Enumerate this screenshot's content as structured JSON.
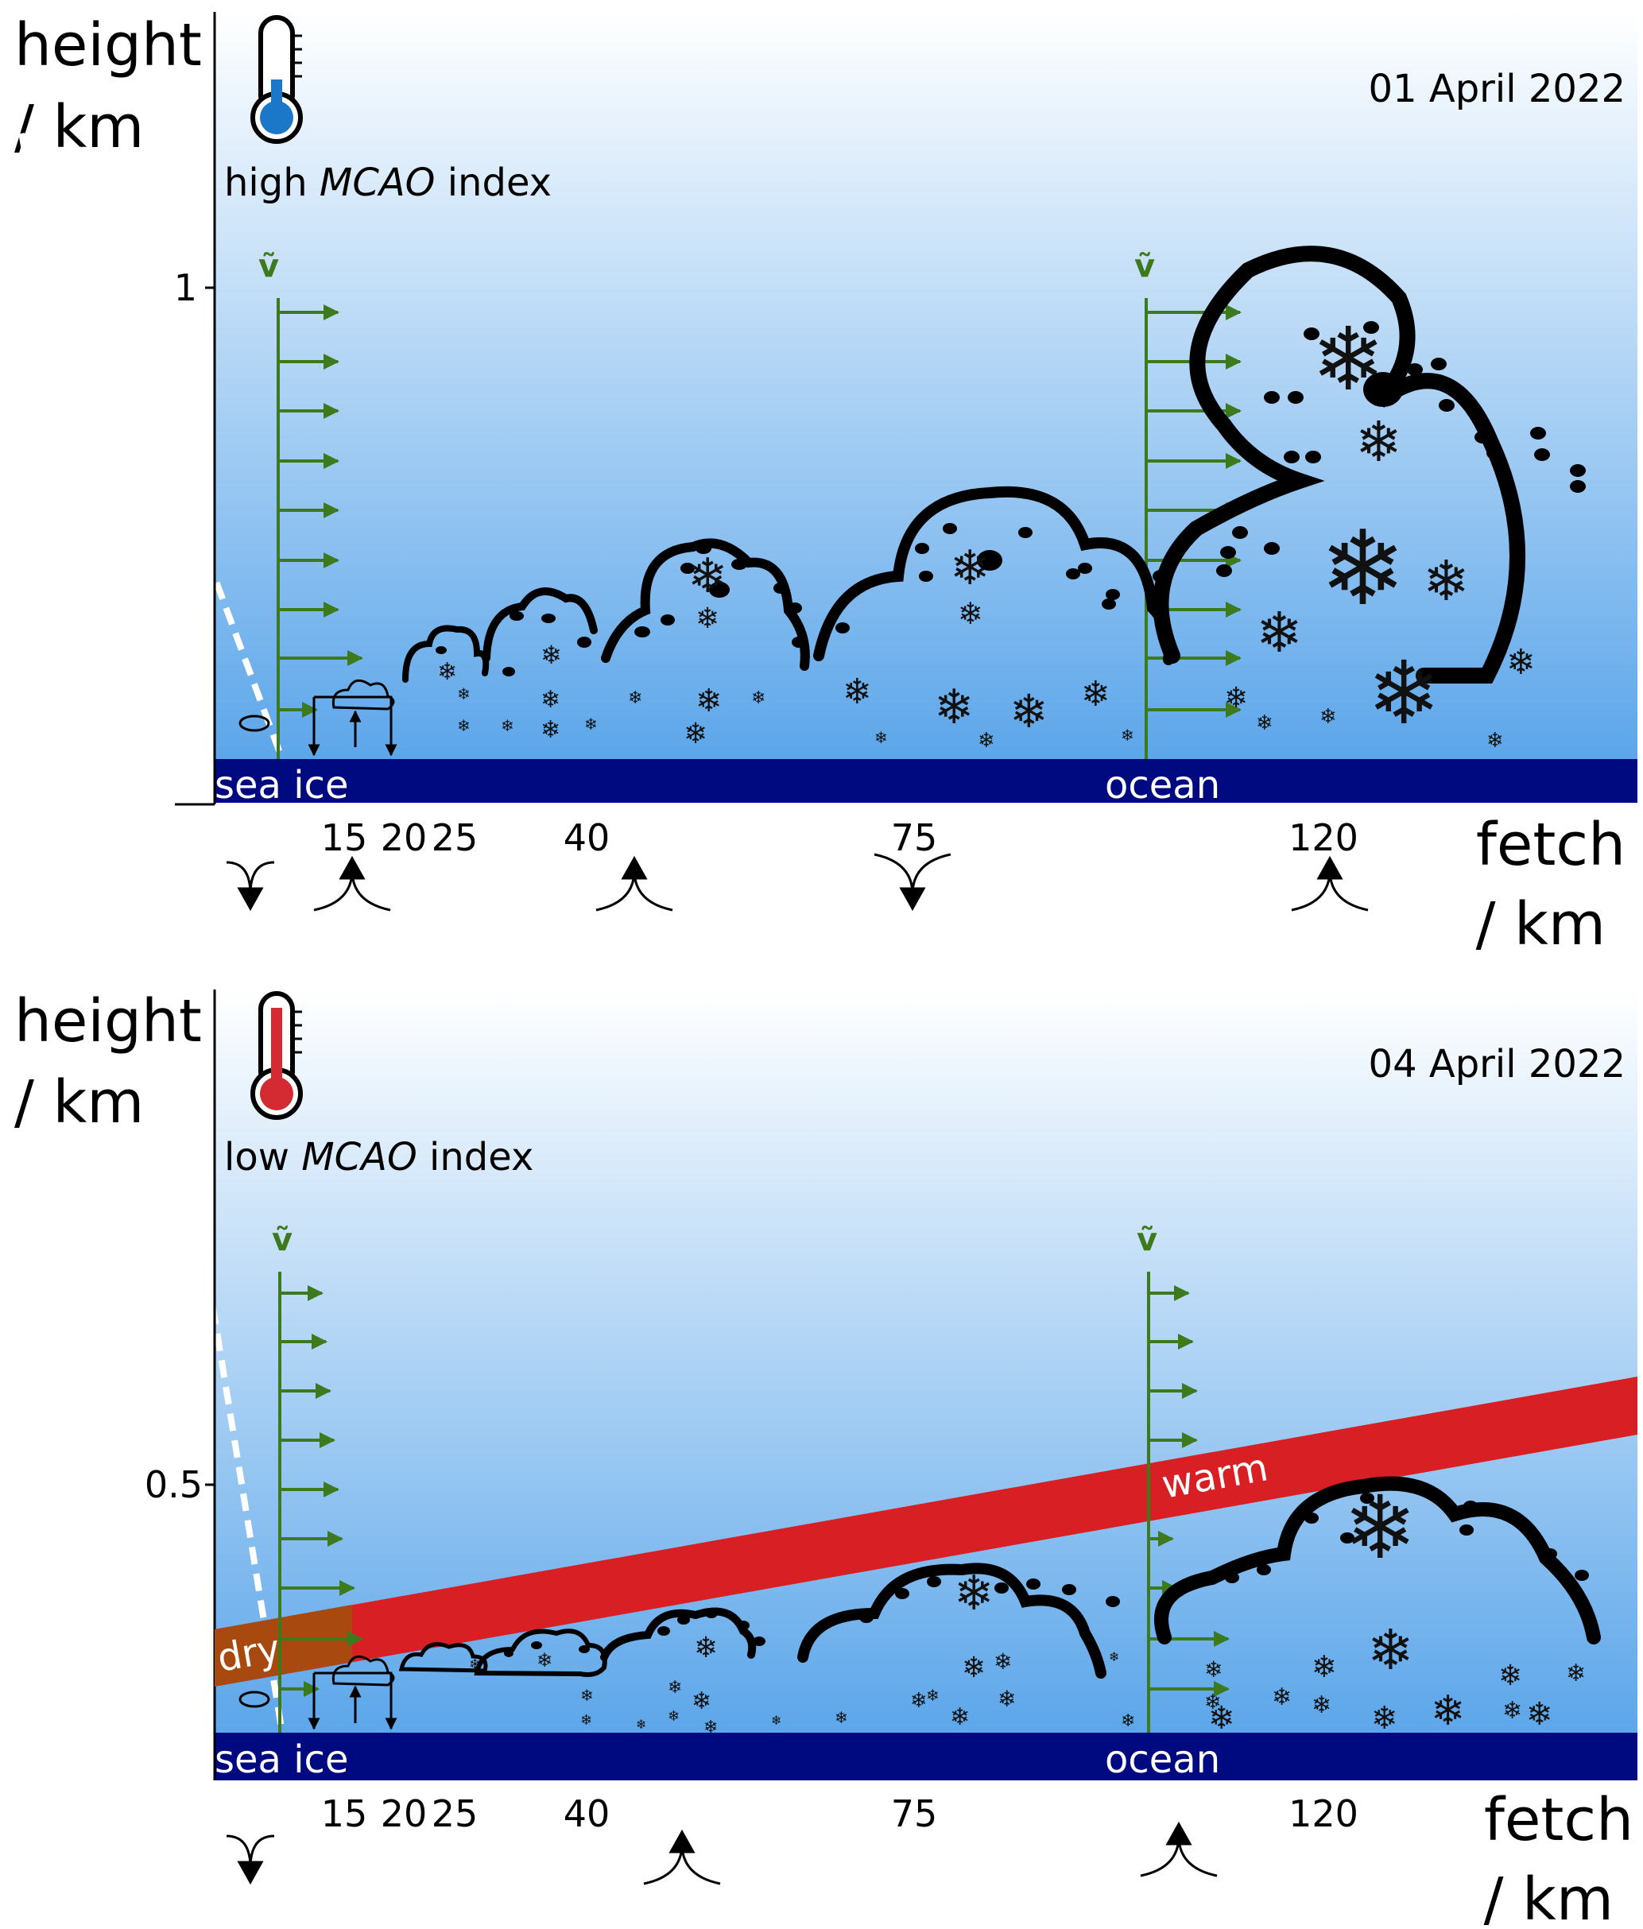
{
  "panels": [
    {
      "date": "01 April 2022",
      "y_label_line1": "height",
      "y_label_line2": "/ km",
      "y_tick": "1",
      "index_label_pre": "high ",
      "index_label_em": "MCAO",
      "index_label_post": " index",
      "thermometer_color": "#1b78c8",
      "surface_left": "sea ice",
      "surface_right": "ocean",
      "wind_label": "ṽ",
      "x_label_line1": "fetch",
      "x_label_line2": "/ km",
      "x_ticks": [
        "15",
        "20",
        "25",
        "40",
        "75",
        "120"
      ]
    },
    {
      "date": "04 April 2022",
      "y_label_line1": "height",
      "y_label_line2": "/ km",
      "y_tick": "0.5",
      "index_label_pre": "low ",
      "index_label_em": "MCAO",
      "index_label_post": " index",
      "thermometer_color": "#d42a32",
      "surface_left": "sea ice",
      "surface_right": "ocean",
      "wind_label": "ṽ",
      "x_label_line1": "fetch",
      "x_label_line2": "/ km",
      "x_ticks": [
        "15",
        "20",
        "25",
        "40",
        "75",
        "120"
      ],
      "warm_label": "warm",
      "dry_label": "dry"
    }
  ],
  "colors": {
    "sky_top": "#ffffff",
    "sky_bottom": "#5ca6ea",
    "surface": "#000a80",
    "wind_arrow": "#3d7a1e",
    "warm_band": "#d81f23",
    "dry_band": "#a84a10"
  }
}
